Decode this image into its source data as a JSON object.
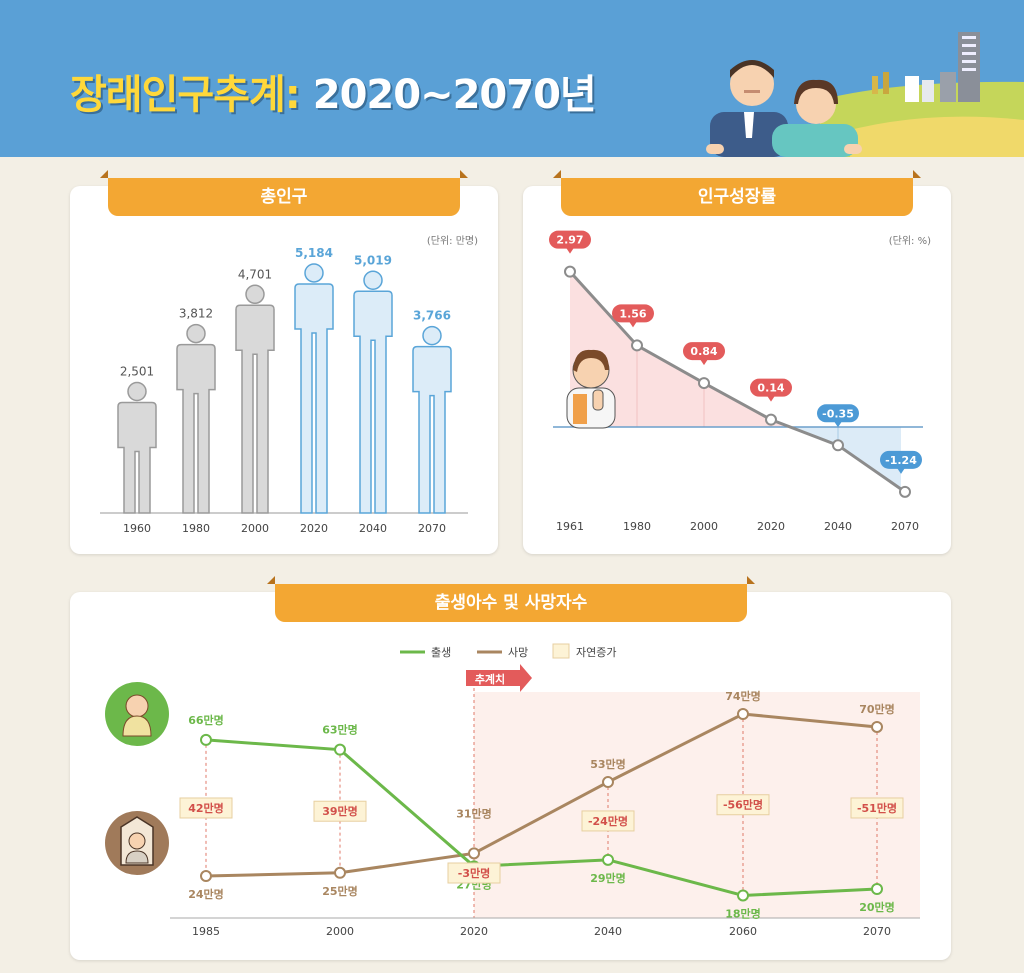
{
  "header": {
    "title_part1": "장래인구추계:",
    "title_part2": "2020~2070년"
  },
  "colors": {
    "header_bg": "#5aa0d6",
    "accent": "#f3a733",
    "gray_figure": "#d9d9d9",
    "blue_figure": "#dcecf8",
    "blue_stroke": "#5aa5d8",
    "red_label": "#e35b5b",
    "blue_label": "#4c9ad6",
    "birth": "#6cb84a",
    "death": "#a98660"
  },
  "panels": {
    "total": {
      "title": "총인구",
      "unit": "(단위: 만명)"
    },
    "growth": {
      "title": "인구성장률",
      "unit": "(단위: %)"
    },
    "births": {
      "title": "출생아수 및 사망자수"
    }
  },
  "chart_data": [
    {
      "type": "bar",
      "title": "총인구",
      "unit": "(단위: 만명)",
      "categories": [
        "1960",
        "1980",
        "2000",
        "2020",
        "2040",
        "2070"
      ],
      "values": [
        2501,
        3812,
        4701,
        5184,
        5019,
        3766
      ],
      "value_labels": [
        "2,501",
        "3,812",
        "4,701",
        "5,184",
        "5,019",
        "3,766"
      ],
      "highlight": [
        false,
        false,
        false,
        true,
        true,
        true
      ],
      "ylim": [
        0,
        5500
      ]
    },
    {
      "type": "area",
      "title": "인구성장률",
      "unit": "(단위: %)",
      "categories": [
        "1961",
        "1980",
        "2000",
        "2020",
        "2040",
        "2070"
      ],
      "values": [
        2.97,
        1.56,
        0.84,
        0.14,
        -0.35,
        -1.24
      ],
      "value_labels": [
        "2.97",
        "1.56",
        "0.84",
        "0.14",
        "-0.35",
        "-1.24"
      ],
      "ylim": [
        -1.6,
        3.2
      ]
    },
    {
      "type": "line",
      "title": "출생아수 및 사망자수",
      "categories": [
        "1985",
        "2000",
        "2020",
        "2040",
        "2060",
        "2070"
      ],
      "series": [
        {
          "name": "출생",
          "values": [
            66,
            63,
            27,
            29,
            18,
            20
          ],
          "labels": [
            "66만명",
            "63만명",
            "27만명",
            "29만명",
            "18만명",
            "20만명"
          ]
        },
        {
          "name": "사망",
          "values": [
            24,
            25,
            31,
            53,
            74,
            70
          ],
          "labels": [
            "24만명",
            "25만명",
            "31만명",
            "53만명",
            "74만명",
            "70만명"
          ]
        }
      ],
      "natural_increase": [
        "42만명",
        "39만명",
        "-3만명",
        "-24만명",
        "-56만명",
        "-51만명"
      ],
      "legend": [
        "출생",
        "사망",
        "자연증가"
      ],
      "projection_label": "추계치",
      "ylim": [
        10,
        80
      ]
    }
  ]
}
